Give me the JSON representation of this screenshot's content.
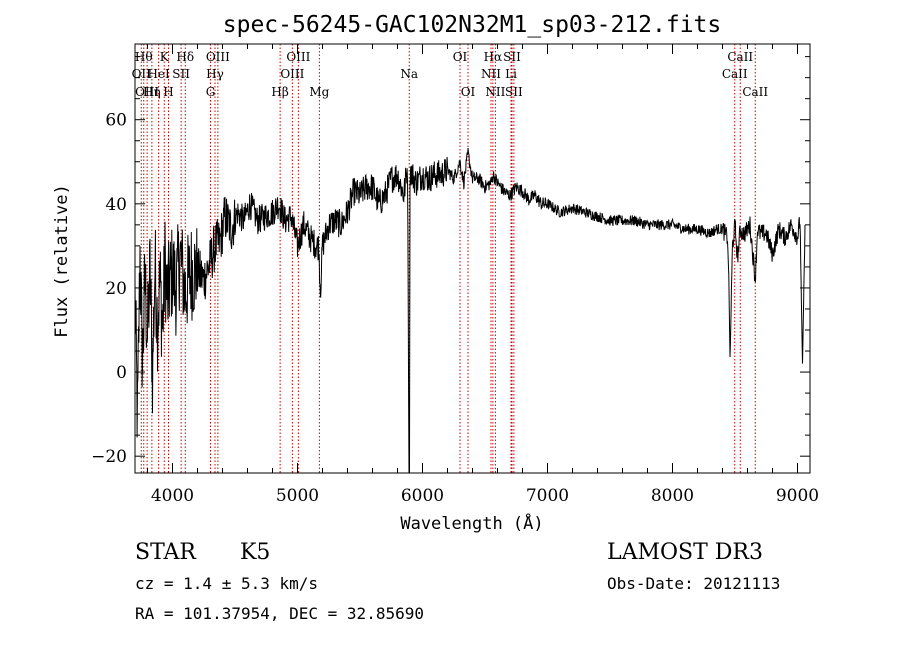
{
  "chart_data": {
    "type": "line",
    "title": "spec-56245-GAC102N32M1_sp03-212.fits",
    "xlabel": "Wavelength (Å)",
    "ylabel": "Flux (relative)",
    "xlim": [
      3700,
      9100
    ],
    "ylim": [
      -24,
      78
    ],
    "x_ticks": [
      4000,
      5000,
      6000,
      7000,
      8000,
      9000
    ],
    "y_ticks": [
      -20,
      0,
      20,
      40,
      60
    ],
    "grid": false,
    "series": [
      {
        "x": [
          3700,
          3720,
          3740,
          3760,
          3780,
          3800,
          3820,
          3840,
          3860,
          3880,
          3900,
          3920,
          3940,
          3960,
          3980,
          4000,
          4030,
          4060,
          4100,
          4150,
          4200,
          4250,
          4300,
          4340,
          4380,
          4420,
          4470,
          4520,
          4570,
          4620,
          4680,
          4740,
          4800,
          4850,
          4900,
          4950,
          5000,
          5050,
          5100,
          5150,
          5170,
          5183,
          5200,
          5250,
          5300,
          5350,
          5400,
          5450,
          5500,
          5550,
          5600,
          5650,
          5700,
          5750,
          5800,
          5850,
          5880,
          5892,
          5896,
          5900,
          5950,
          6000,
          6050,
          6100,
          6150,
          6200,
          6250,
          6300,
          6330,
          6364,
          6400,
          6450,
          6500,
          6550,
          6563,
          6600,
          6650,
          6700,
          6750,
          6800,
          6850,
          6900,
          6950,
          7000,
          7100,
          7200,
          7300,
          7400,
          7500,
          7600,
          7700,
          7800,
          7900,
          8000,
          8100,
          8200,
          8300,
          8350,
          8400,
          8440,
          8450,
          8460,
          8480,
          8500,
          8520,
          8542,
          8560,
          8580,
          8600,
          8620,
          8662,
          8680,
          8700,
          8750,
          8800,
          8850,
          8900,
          8950,
          9000,
          9020,
          9040,
          9060
        ],
        "y": [
          18,
          -12,
          28,
          2,
          22,
          8,
          24,
          0,
          25,
          12,
          22,
          10,
          26,
          17,
          22,
          24,
          20,
          28,
          19,
          24,
          24,
          22,
          26,
          30,
          31,
          37,
          34,
          38,
          36,
          40,
          36,
          37,
          38,
          40,
          36,
          37,
          30,
          35,
          32,
          30,
          30,
          19,
          30,
          35,
          36,
          35,
          38,
          43,
          42,
          44,
          44,
          40,
          42,
          46,
          47,
          42,
          49,
          -24,
          -24,
          48,
          45,
          47,
          46,
          47,
          47,
          48,
          46,
          50,
          45,
          52,
          46,
          46,
          44,
          45,
          47,
          45,
          43,
          42,
          44,
          43,
          41,
          42,
          40,
          40,
          38,
          39,
          38,
          37,
          36,
          36,
          36,
          35,
          35,
          35,
          34,
          34,
          33,
          34,
          34,
          32,
          23,
          3,
          30,
          35,
          27,
          34,
          33,
          33,
          34,
          35,
          22,
          34,
          33,
          33,
          28,
          34,
          32,
          35,
          32,
          36,
          2,
          35
        ]
      }
    ],
    "lines": [
      {
        "wl": 3750,
        "label": "OII",
        "row": 2
      },
      {
        "wl": 3770,
        "label": "Hθ",
        "row": 1
      },
      {
        "wl": 3797,
        "label": "OIII",
        "row": 3
      },
      {
        "wl": 3835,
        "label": "Hη",
        "row": 3
      },
      {
        "wl": 3889,
        "label": "HeI",
        "row": 2
      },
      {
        "wl": 3934,
        "label": "K",
        "row": 1
      },
      {
        "wl": 3968,
        "label": "H",
        "row": 3
      },
      {
        "wl": 4069,
        "label": "SII",
        "row": 2
      },
      {
        "wl": 4102,
        "label": "Hδ",
        "row": 1
      },
      {
        "wl": 4304,
        "label": "G",
        "row": 3
      },
      {
        "wl": 4340,
        "label": "Hγ",
        "row": 2
      },
      {
        "wl": 4363,
        "label": "OIII",
        "row": 1
      },
      {
        "wl": 4861,
        "label": "Hβ",
        "row": 3
      },
      {
        "wl": 4959,
        "label": "OIII",
        "row": 2
      },
      {
        "wl": 5007,
        "label": "OIII",
        "row": 1
      },
      {
        "wl": 5175,
        "label": "Mg",
        "row": 3
      },
      {
        "wl": 5894,
        "label": "Na",
        "row": 2
      },
      {
        "wl": 6300,
        "label": "OI",
        "row": 1
      },
      {
        "wl": 6364,
        "label": "OI",
        "row": 3
      },
      {
        "wl": 6548,
        "label": "NII",
        "row": 2
      },
      {
        "wl": 6563,
        "label": "Hα",
        "row": 1
      },
      {
        "wl": 6583,
        "label": "NII",
        "row": 3
      },
      {
        "wl": 6708,
        "label": "Li",
        "row": 2
      },
      {
        "wl": 6716,
        "label": "SII",
        "row": 1
      },
      {
        "wl": 6731,
        "label": "SII",
        "row": 3
      },
      {
        "wl": 8498,
        "label": "CaII",
        "row": 2
      },
      {
        "wl": 8542,
        "label": "CaII",
        "row": 1
      },
      {
        "wl": 8662,
        "label": "CaII",
        "row": 3
      }
    ],
    "colors": {
      "spectrum": "#000000",
      "line_markers": "#cc0000",
      "axes": "#000000"
    }
  },
  "info": {
    "object_class": "STAR",
    "subclass": "K5",
    "survey": "LAMOST DR3",
    "cz": "cz = 1.4 ± 5.3 km/s",
    "obs_date": "Obs-Date: 20121113",
    "coords": "RA = 101.37954, DEC =  32.85690"
  }
}
